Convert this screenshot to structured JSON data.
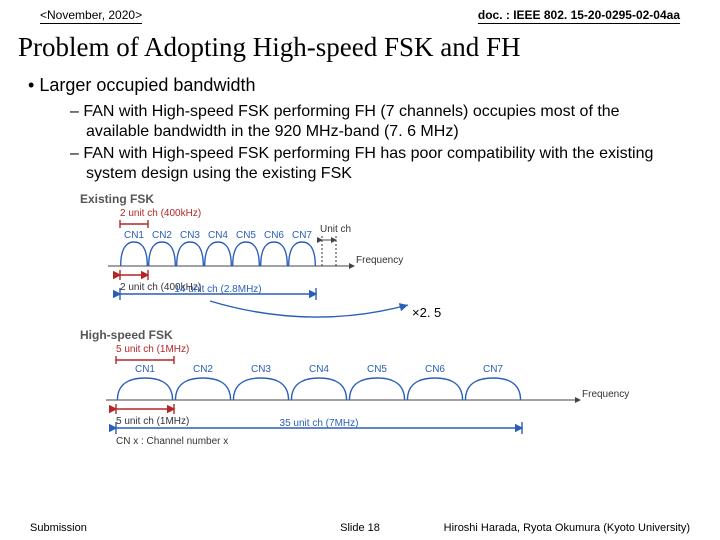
{
  "header": {
    "date": "<November, 2020>",
    "docnum": "doc. : IEEE 802. 15-20-0295-02-04aa"
  },
  "title": "Problem of Adopting High-speed FSK and FH",
  "main_bullet": "Larger occupied bandwidth",
  "sub1": "FAN with High-speed FSK performing FH (7 channels) occupies most of the available bandwidth in the 920 MHz-band (7. 6 MHz)",
  "sub2": "FAN with High-speed FSK performing FH has poor compatibility with the existing system design using the existing FSK",
  "existing": {
    "title": "Existing FSK",
    "unit_top": "2 unit ch (400kHz)",
    "channels": [
      "CN1",
      "CN2",
      "CN3",
      "CN4",
      "CN5",
      "CN6",
      "CN7"
    ],
    "unitch": "Unit ch",
    "axis": "Frequency",
    "bottom_unit": "2 unit ch (400kHz)",
    "span": "14 unit ch (2.8MHz)",
    "num_channels": 7,
    "ch_width": 28,
    "colors": {
      "chname": "#2a5fb8",
      "span": "#b42727",
      "axis": "#444"
    }
  },
  "highspeed": {
    "title": "High-speed FSK",
    "unit_top": "5 unit ch (1MHz)",
    "channels": [
      "CN1",
      "CN2",
      "CN3",
      "CN4",
      "CN5",
      "CN6",
      "CN7"
    ],
    "axis": "Frequency",
    "bottom_unit": "5 unit ch (1MHz)",
    "span": "35 unit ch (7MHz)",
    "note": "CN x : Channel number x",
    "num_channels": 7,
    "ch_width": 58
  },
  "multiplier": "×2. 5",
  "footer": {
    "left": "Submission",
    "mid": "Slide 18",
    "right": "Hiroshi Harada, Ryota Okumura (Kyoto University)"
  }
}
